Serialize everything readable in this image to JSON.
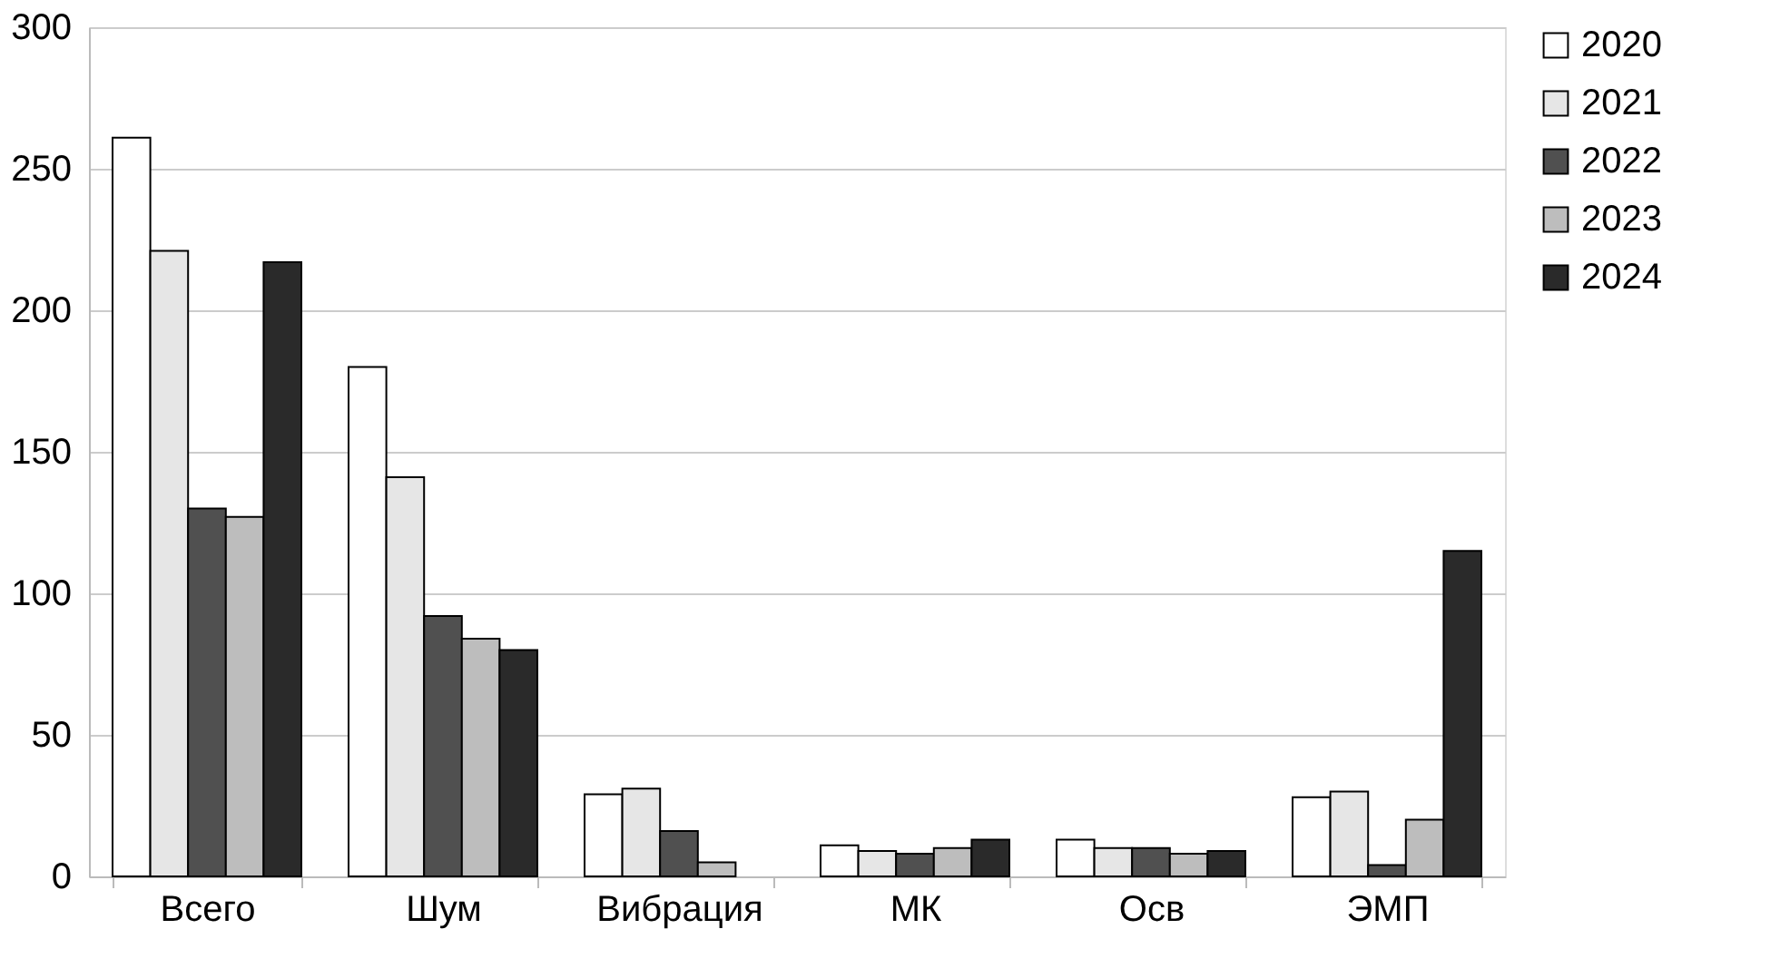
{
  "chart_data": {
    "type": "bar",
    "categories": [
      "Всего",
      "Шум",
      "Вибрация",
      "МК",
      "Осв",
      "ЭМП"
    ],
    "series": [
      {
        "name": "2020",
        "color": "#ffffff",
        "values": [
          261,
          180,
          29,
          11,
          13,
          28
        ]
      },
      {
        "name": "2021",
        "color": "#e6e6e6",
        "values": [
          221,
          141,
          31,
          9,
          10,
          30
        ]
      },
      {
        "name": "2022",
        "color": "#505050",
        "values": [
          130,
          92,
          16,
          8,
          10,
          4
        ]
      },
      {
        "name": "2023",
        "color": "#bdbdbd",
        "values": [
          127,
          84,
          5,
          10,
          8,
          20
        ]
      },
      {
        "name": "2024",
        "color": "#2a2a2a",
        "values": [
          217,
          80,
          null,
          13,
          9,
          115
        ]
      }
    ],
    "ylim": [
      0,
      300
    ],
    "yticks": [
      0,
      50,
      100,
      150,
      200,
      250,
      300
    ],
    "grid": "y",
    "legend": "right"
  }
}
